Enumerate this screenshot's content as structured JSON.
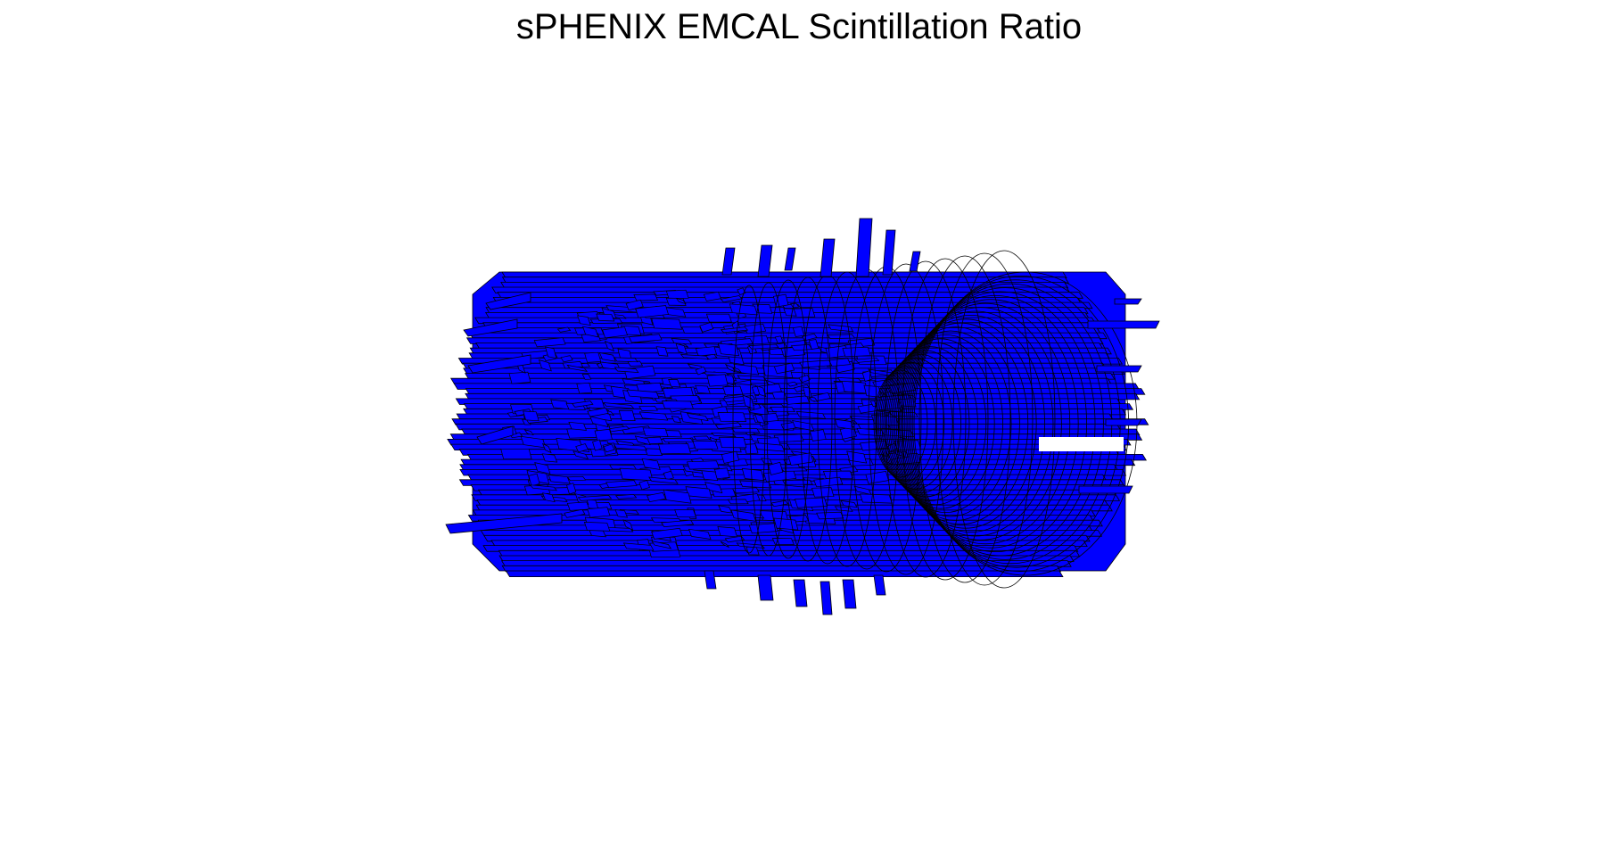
{
  "chart_data": {
    "type": "lego-3d-barrel",
    "title": "sPHENIX EMCAL Scintillation Ratio",
    "xlabel": "",
    "ylabel": "",
    "axes_visible": false,
    "grid": false,
    "legend": "none",
    "fill_color": "#0000ff",
    "edge_color": "#000000",
    "description_rings": 26
  }
}
